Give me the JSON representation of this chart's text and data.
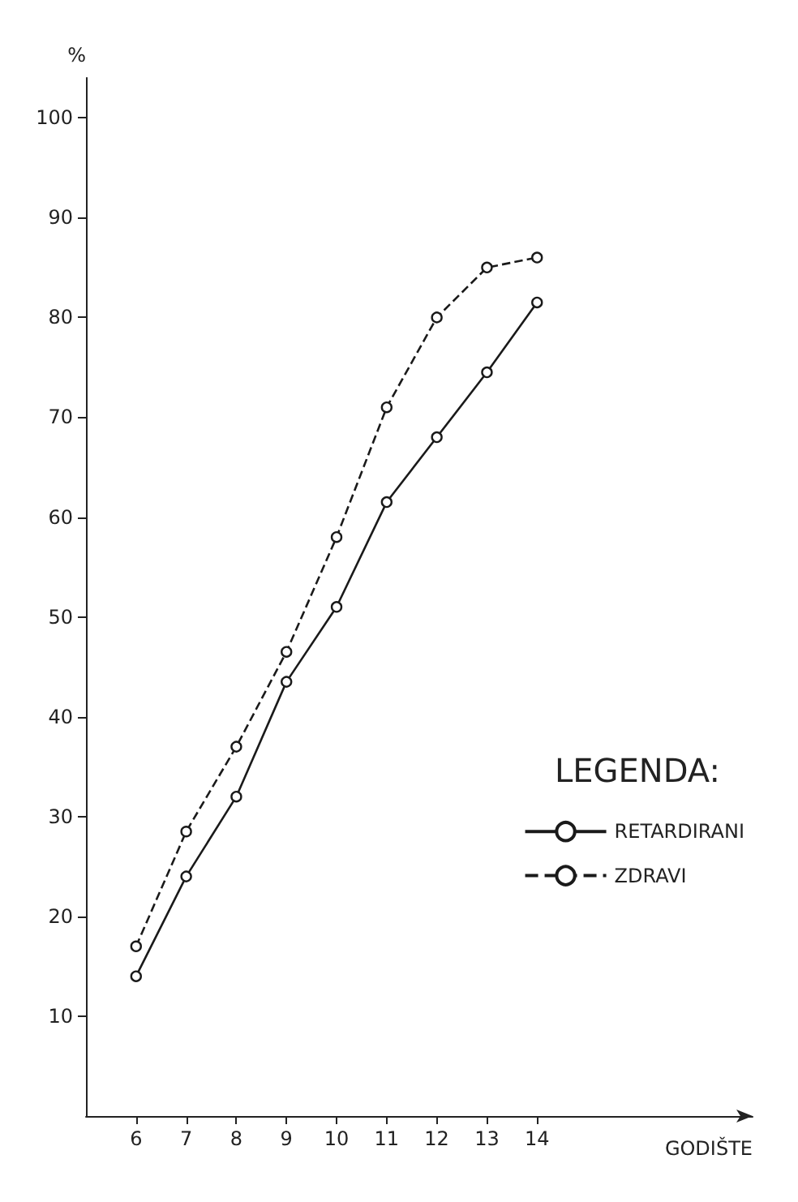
{
  "chart_data": {
    "type": "line",
    "xlabel": "GODIŠTE",
    "ylabel": "%",
    "legend_title": "LEGENDA:",
    "x": [
      6,
      7,
      8,
      9,
      10,
      11,
      12,
      13,
      14
    ],
    "series": [
      {
        "name": "RETARDIRANI",
        "color": "#1a1a1a",
        "line_style": "solid",
        "values": [
          14,
          24,
          32,
          43.5,
          51,
          61.5,
          68,
          74.5,
          81.5
        ]
      },
      {
        "name": "ZDRAVI",
        "color": "#1a1a1a",
        "line_style": "dashed",
        "values": [
          17,
          28.5,
          37,
          46.5,
          58,
          71,
          80,
          85,
          86
        ]
      }
    ],
    "xlim": [
      5,
      18.3
    ],
    "xticks": [
      6,
      7,
      8,
      9,
      10,
      11,
      12,
      13,
      14
    ],
    "ylim": [
      0,
      104
    ],
    "yticks": [
      10,
      20,
      30,
      40,
      50,
      60,
      70,
      80,
      90,
      100
    ],
    "grid": false,
    "legend": "right",
    "marker": "circle"
  }
}
